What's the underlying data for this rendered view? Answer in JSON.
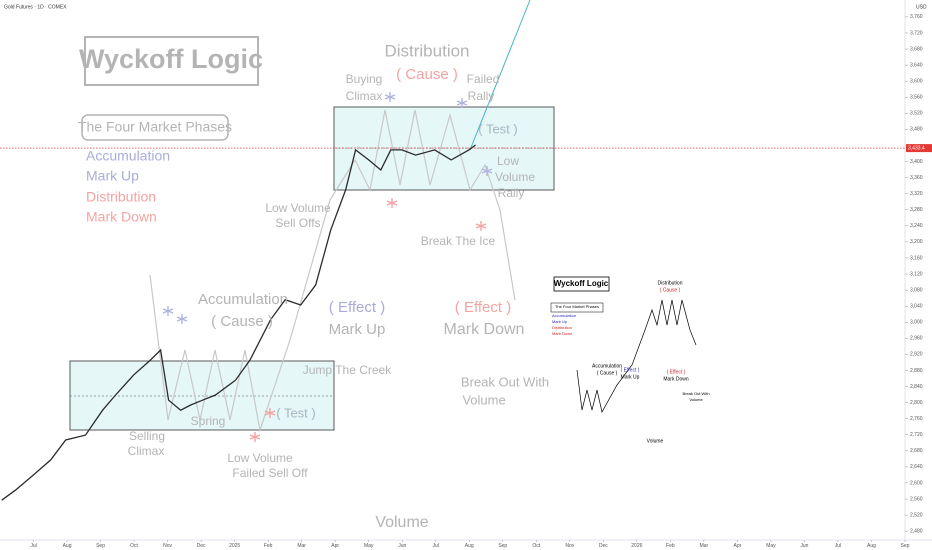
{
  "chart_data": {
    "type": "line",
    "title": "Wyckoff Logic",
    "symbol": "Gold Futures · 1D · COMEX",
    "currency": "USD",
    "color": "#2b2b2b",
    "grid": false,
    "xlim": [
      -1,
      26
    ],
    "ylim": [
      2458,
      3802
    ],
    "x": [
      -0.95,
      -0.54,
      0,
      0.51,
      0.96,
      1.55,
      2.06,
      2.45,
      2.99,
      3.49,
      3.79,
      4.03,
      4.39,
      4.69,
      5.04,
      5.43,
      6.03,
      6.46,
      7.07,
      7.51,
      7.97,
      8.42,
      8.87,
      9.31,
      9.61,
      10,
      10.36,
      10.66,
      10.99,
      11.4,
      11.97,
      12.46,
      12.99,
      13.19
    ],
    "values": [
      2557,
      2582,
      2620,
      2657,
      2707,
      2719,
      2781,
      2819,
      2869,
      2906,
      2931,
      2806,
      2781,
      2794,
      2806,
      2819,
      2856,
      2906,
      3006,
      3056,
      3043,
      3093,
      3230,
      3329,
      3429,
      3404,
      3379,
      3429,
      3429,
      3416,
      3429,
      3404,
      3429,
      3441
    ],
    "last_price": {
      "value": 3433.4,
      "label": "3,433.4",
      "color": "#e53935"
    },
    "xticks": [
      {
        "value": 0,
        "label": "Jul"
      },
      {
        "value": 1,
        "label": "Aug"
      },
      {
        "value": 2,
        "label": "Sep"
      },
      {
        "value": 3,
        "label": "Oct"
      },
      {
        "value": 4,
        "label": "Nov"
      },
      {
        "value": 5,
        "label": "Dec"
      },
      {
        "value": 6,
        "label": "2025"
      },
      {
        "value": 7,
        "label": "Feb"
      },
      {
        "value": 8,
        "label": "Mar"
      },
      {
        "value": 9,
        "label": "Apr"
      },
      {
        "value": 10,
        "label": "May"
      },
      {
        "value": 11,
        "label": "Jun"
      },
      {
        "value": 12,
        "label": "Jul"
      },
      {
        "value": 13,
        "label": "Aug"
      },
      {
        "value": 14,
        "label": "Sep"
      },
      {
        "value": 15,
        "label": "Oct"
      },
      {
        "value": 16,
        "label": "Nov"
      },
      {
        "value": 17,
        "label": "Dec"
      },
      {
        "value": 18,
        "label": "2026"
      },
      {
        "value": 19,
        "label": "Feb"
      },
      {
        "value": 20,
        "label": "Mar"
      },
      {
        "value": 21,
        "label": "Apr"
      },
      {
        "value": 22,
        "label": "May"
      },
      {
        "value": 23,
        "label": "Jun"
      },
      {
        "value": 24,
        "label": "Jul"
      },
      {
        "value": 25,
        "label": "Aug"
      },
      {
        "value": 26,
        "label": "Sep"
      }
    ],
    "yticks": [
      {
        "value": 3760,
        "label": "3,760"
      },
      {
        "value": 3720,
        "label": "3,720"
      },
      {
        "value": 3680,
        "label": "3,680"
      },
      {
        "value": 3640,
        "label": "3,640"
      },
      {
        "value": 3600,
        "label": "3,600"
      },
      {
        "value": 3560,
        "label": "3,560"
      },
      {
        "value": 3520,
        "label": "3,520"
      },
      {
        "value": 3480,
        "label": "3,480"
      },
      {
        "value": 3400,
        "label": "3,400"
      },
      {
        "value": 3360,
        "label": "3,360"
      },
      {
        "value": 3320,
        "label": "3,320"
      },
      {
        "value": 3280,
        "label": "3,280"
      },
      {
        "value": 3240,
        "label": "3,240"
      },
      {
        "value": 3200,
        "label": "3,200"
      },
      {
        "value": 3160,
        "label": "3,160"
      },
      {
        "value": 3120,
        "label": "3,120"
      },
      {
        "value": 3080,
        "label": "3,080"
      },
      {
        "value": 3040,
        "label": "3,040"
      },
      {
        "value": 3000,
        "label": "3,000"
      },
      {
        "value": 2960,
        "label": "2,960"
      },
      {
        "value": 2920,
        "label": "2,920"
      },
      {
        "value": 2880,
        "label": "2,880"
      },
      {
        "value": 2840,
        "label": "2,840"
      },
      {
        "value": 2800,
        "label": "2,800"
      },
      {
        "value": 2760,
        "label": "2,760"
      },
      {
        "value": 2720,
        "label": "2,720"
      },
      {
        "value": 2680,
        "label": "2,680"
      },
      {
        "value": 2640,
        "label": "2,640"
      },
      {
        "value": 2600,
        "label": "2,600"
      },
      {
        "value": 2560,
        "label": "2,560"
      },
      {
        "value": 2520,
        "label": "2,520"
      },
      {
        "value": 2480,
        "label": "2,480"
      }
    ],
    "phases_title": "The Four Market Phases",
    "phases": [
      {
        "text": "Accumulation",
        "color": "#a9acd8"
      },
      {
        "text": "Mark Up",
        "color": "#a9acd8"
      },
      {
        "text": "Distribution",
        "color": "#f4a3a3"
      },
      {
        "text": "Mark Down",
        "color": "#f4a3a3"
      }
    ],
    "annotations": [
      {
        "text": "Distribution",
        "color": "#b4b4b4"
      },
      {
        "text": "( Cause )",
        "color": "#f4a3a3"
      },
      {
        "text": "Buying",
        "color": "#b4b4b4"
      },
      {
        "text": "Climax",
        "color": "#b4b4b4"
      },
      {
        "text": "Failed",
        "color": "#b4b4b4"
      },
      {
        "text": "Rally",
        "color": "#b4b4b4"
      },
      {
        "text": "( Test )",
        "color": "#a9b4c2"
      },
      {
        "text": "Low",
        "color": "#b4b4b4"
      },
      {
        "text": "Volume",
        "color": "#b4b4b4"
      },
      {
        "text": "Rally",
        "color": "#b4b4b4"
      },
      {
        "text": "Break The Ice",
        "color": "#b4b4b4"
      },
      {
        "text": "( Effect )",
        "color": "#f4a3a3"
      },
      {
        "text": "Mark Down",
        "color": "#b4b4b4"
      },
      {
        "text": "Low Volume",
        "color": "#b4b4b4"
      },
      {
        "text": "Sell Offs",
        "color": "#b4b4b4"
      },
      {
        "text": "Accumulation",
        "color": "#b4b4b4"
      },
      {
        "text": "( Cause )",
        "color": "#b4b4b4"
      },
      {
        "text": "( Effect )",
        "color": "#a9acd8"
      },
      {
        "text": "Mark Up",
        "color": "#b4b4b4"
      },
      {
        "text": "Jump The Creek",
        "color": "#b4b4b4"
      },
      {
        "text": "Break Out With",
        "color": "#b4b4b4"
      },
      {
        "text": "Volume",
        "color": "#b4b4b4"
      },
      {
        "text": "( Test )",
        "color": "#a9b4c2"
      },
      {
        "text": "Spring",
        "color": "#b4b4b4"
      },
      {
        "text": "Selling",
        "color": "#b4b4b4"
      },
      {
        "text": "Climax",
        "color": "#b4b4b4"
      },
      {
        "text": "Low Volume",
        "color": "#b4b4b4"
      },
      {
        "text": "Failed Sell Off",
        "color": "#b4b4b4"
      },
      {
        "text": "Volume",
        "color": "#b4b4b4"
      }
    ],
    "inset": [
      {
        "text": "Wyckoff Logic",
        "color": "#000000"
      },
      {
        "text": "The Four Market Phases",
        "color": "#000000"
      },
      {
        "text": "Accumulation",
        "color": "#2b2bb0"
      },
      {
        "text": "Mark Up",
        "color": "#2b2bb0"
      },
      {
        "text": "Distribution",
        "color": "#d42020"
      },
      {
        "text": "Mark Down",
        "color": "#d42020"
      },
      {
        "text": "Distribution",
        "color": "#000000"
      },
      {
        "text": "( Cause )",
        "color": "#d42020"
      },
      {
        "text": "Accumulation",
        "color": "#000000"
      },
      {
        "text": "( Cause )",
        "color": "#000000"
      },
      {
        "text": "( Effect )",
        "color": "#2b2bb0"
      },
      {
        "text": "Mark Up",
        "color": "#000000"
      },
      {
        "text": "( Effect )",
        "color": "#d42020"
      },
      {
        "text": "Mark Down",
        "color": "#000000"
      },
      {
        "text": "Break Out With",
        "color": "#000000"
      },
      {
        "text": "Volume",
        "color": "#000000"
      },
      {
        "text": "Volume",
        "color": "#000000"
      }
    ]
  }
}
